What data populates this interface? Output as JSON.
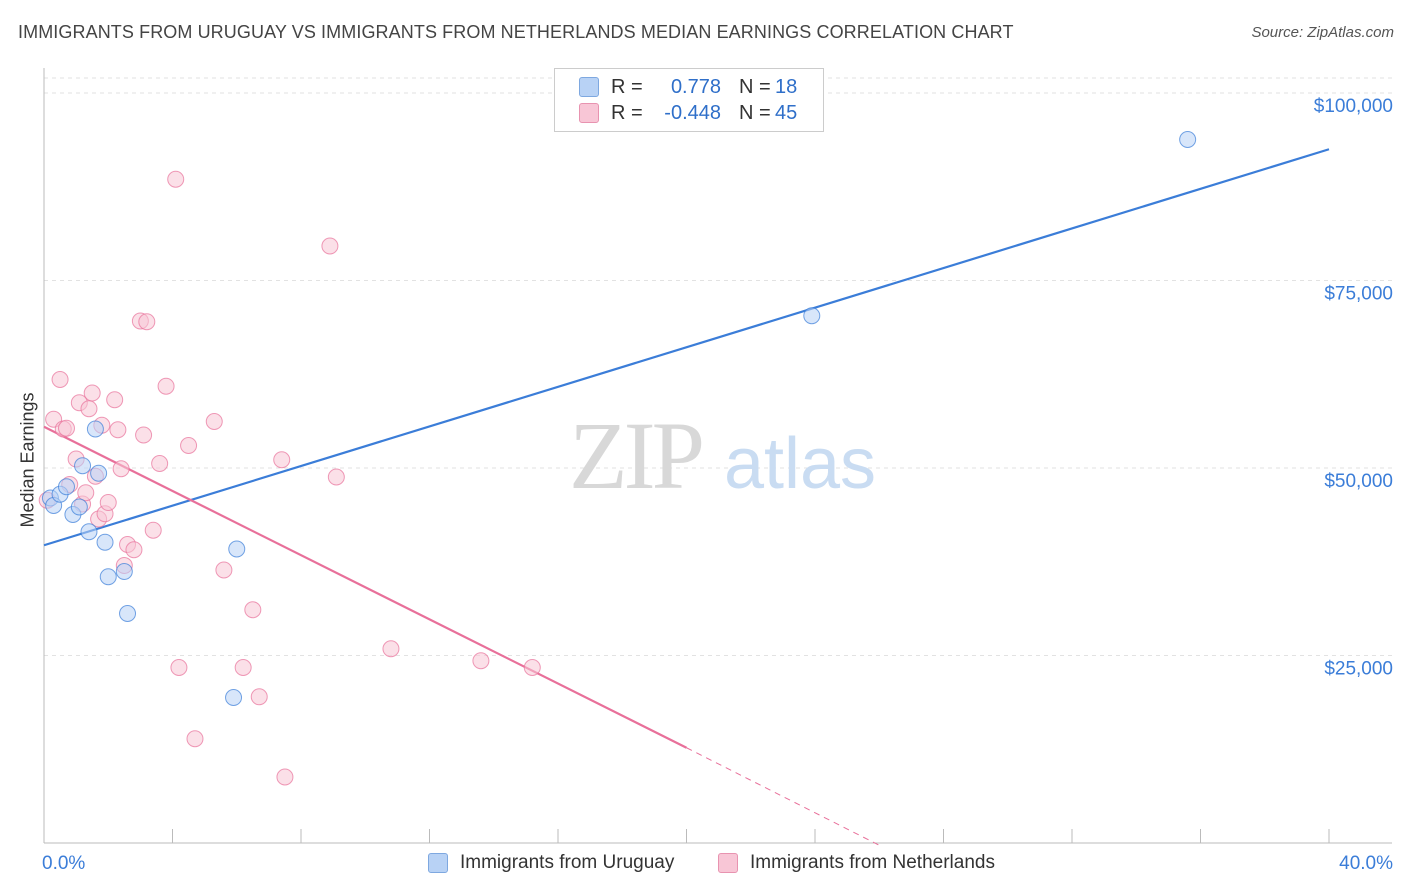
{
  "title": "IMMIGRANTS FROM URUGUAY VS IMMIGRANTS FROM NETHERLANDS MEDIAN EARNINGS CORRELATION CHART",
  "source": "Source: ZipAtlas.com",
  "watermark": {
    "zip": "ZIP",
    "atlas": "atlas"
  },
  "legend": {
    "rows": [
      {
        "r_label": "R =",
        "r_value": "0.778",
        "n_label": "N =",
        "n_value": "18"
      },
      {
        "r_label": "R =",
        "r_value": "-0.448",
        "n_label": "N =",
        "n_value": "45"
      }
    ]
  },
  "chart_data": {
    "type": "scatter",
    "title": "IMMIGRANTS FROM URUGUAY VS IMMIGRANTS FROM NETHERLANDS MEDIAN EARNINGS CORRELATION CHART",
    "xlabel": "",
    "ylabel": "Median Earnings",
    "xlim": [
      0,
      40
    ],
    "ylim": [
      0,
      102000
    ],
    "x_tick_labels": [
      "0.0%",
      "40.0%"
    ],
    "y_ticks": [
      25000,
      50000,
      75000,
      100000
    ],
    "y_tick_labels": [
      "$25,000",
      "$50,000",
      "$75,000",
      "$100,000"
    ],
    "grid": true,
    "legend_position": "top-center",
    "colors": {
      "uruguay": "#3b7dd8",
      "netherlands": "#e8709a",
      "tick_text": "#3b7dd8"
    },
    "series": [
      {
        "name": "Immigrants from Uruguay",
        "color": "#3b7dd8",
        "points": [
          [
            0.2,
            46000
          ],
          [
            0.3,
            45000
          ],
          [
            0.5,
            46500
          ],
          [
            0.7,
            47500
          ],
          [
            0.9,
            43800
          ],
          [
            1.1,
            44800
          ],
          [
            1.2,
            50300
          ],
          [
            1.4,
            41500
          ],
          [
            1.6,
            55200
          ],
          [
            1.7,
            49300
          ],
          [
            1.9,
            40100
          ],
          [
            2.0,
            35500
          ],
          [
            2.5,
            36200
          ],
          [
            2.6,
            30600
          ],
          [
            6.0,
            39200
          ],
          [
            5.9,
            19400
          ],
          [
            23.9,
            70300
          ],
          [
            35.6,
            93800
          ]
        ],
        "trend": {
          "x": [
            0,
            40
          ],
          "y": [
            39700,
            92500
          ]
        }
      },
      {
        "name": "Immigrants from Netherlands",
        "color": "#e8709a",
        "points": [
          [
            0.3,
            56500
          ],
          [
            0.5,
            61800
          ],
          [
            0.6,
            55200
          ],
          [
            0.7,
            55300
          ],
          [
            0.8,
            47800
          ],
          [
            1.0,
            51200
          ],
          [
            1.1,
            58700
          ],
          [
            1.2,
            45200
          ],
          [
            1.3,
            46700
          ],
          [
            1.4,
            57900
          ],
          [
            1.5,
            60000
          ],
          [
            1.6,
            48900
          ],
          [
            1.7,
            43200
          ],
          [
            1.8,
            55700
          ],
          [
            1.9,
            43900
          ],
          [
            2.0,
            45400
          ],
          [
            2.2,
            59100
          ],
          [
            2.3,
            55100
          ],
          [
            2.4,
            49900
          ],
          [
            2.5,
            37000
          ],
          [
            2.6,
            39800
          ],
          [
            2.8,
            39100
          ],
          [
            3.0,
            69600
          ],
          [
            3.1,
            54400
          ],
          [
            3.2,
            69500
          ],
          [
            3.4,
            41700
          ],
          [
            3.6,
            50600
          ],
          [
            3.8,
            60900
          ],
          [
            4.1,
            88500
          ],
          [
            4.2,
            23400
          ],
          [
            4.5,
            53000
          ],
          [
            4.7,
            13900
          ],
          [
            5.3,
            56200
          ],
          [
            5.6,
            36400
          ],
          [
            6.2,
            23400
          ],
          [
            6.5,
            31100
          ],
          [
            6.7,
            19500
          ],
          [
            7.4,
            51100
          ],
          [
            7.5,
            8800
          ],
          [
            8.9,
            79600
          ],
          [
            9.1,
            48800
          ],
          [
            10.8,
            25900
          ],
          [
            13.6,
            24300
          ],
          [
            15.2,
            23400
          ],
          [
            0.1,
            45700
          ]
        ],
        "trend": {
          "x": [
            0,
            20
          ],
          "y": [
            55500,
            12700
          ]
        },
        "trend_extension": {
          "x": [
            20,
            26
          ],
          "y": [
            12700,
            -300
          ]
        }
      }
    ]
  },
  "bottom_legend": {
    "uruguay": "Immigrants from Uruguay",
    "netherlands": "Immigrants from Netherlands"
  }
}
